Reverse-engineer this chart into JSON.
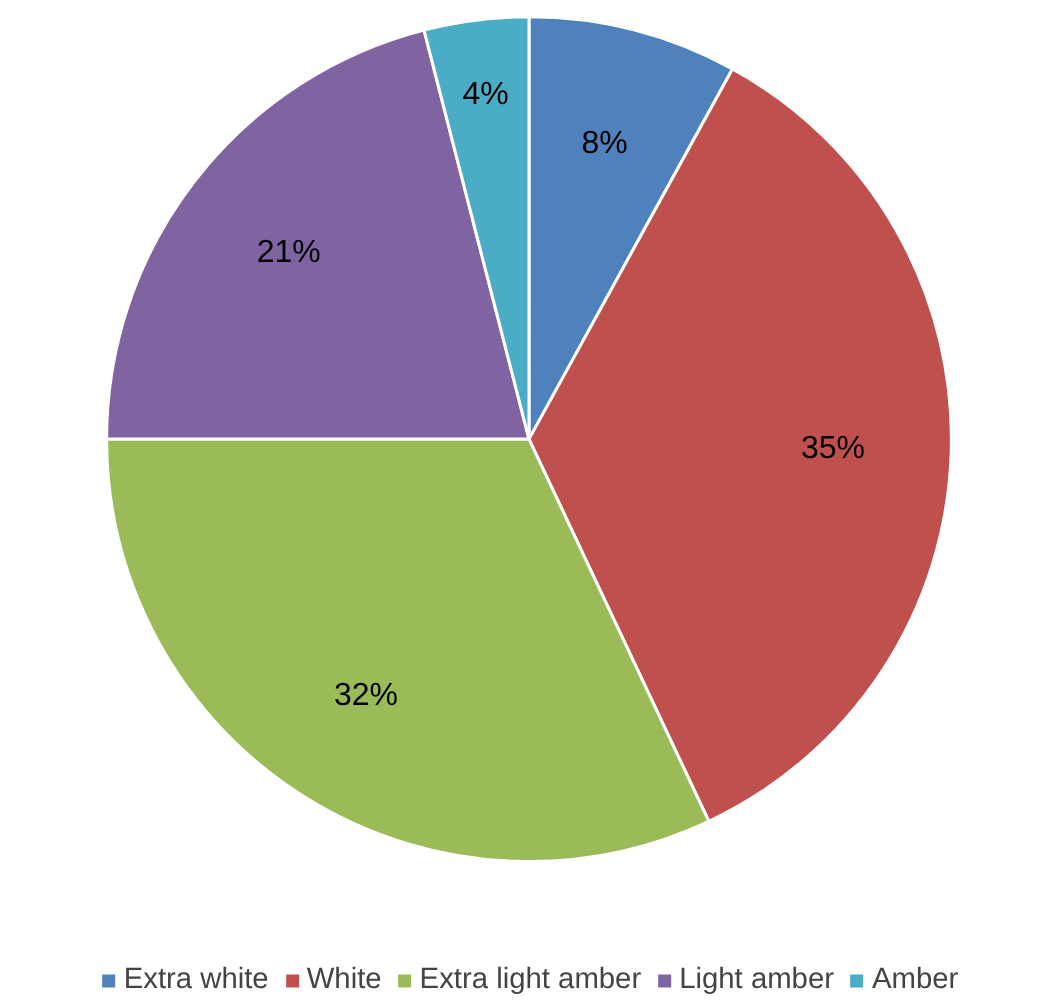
{
  "chart_data": {
    "type": "pie",
    "categories": [
      "Extra white",
      "White",
      "Extra light amber",
      "Light amber",
      "Amber"
    ],
    "values": [
      8,
      35,
      32,
      21,
      4
    ],
    "colors": [
      "#4f81bd",
      "#c0504d",
      "#9bbb59",
      "#8064a2",
      "#4bacc6"
    ],
    "value_labels": [
      "8%",
      "35%",
      "32%",
      "21%",
      "4%"
    ],
    "legend": "bottom"
  }
}
